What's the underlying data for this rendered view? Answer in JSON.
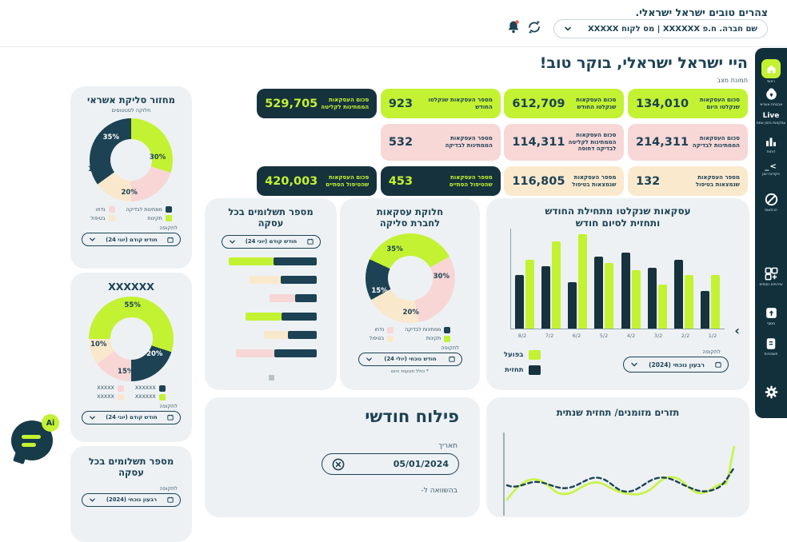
{
  "colors": {
    "lime": "#c3f232",
    "dark": "#1c4254",
    "pink": "#f8d6d6",
    "cream": "#fae8cd",
    "kpi_dark_bg": "#16323d",
    "card_bg": "#edf1f4",
    "sidebar_bg": "#11303c",
    "text_dark": "#1d4254",
    "bell_dot": "#e6604c"
  },
  "header": {
    "greeting": "צהרים טובים ישראל ישראלי.",
    "company_select": "שם חברה. ח.פ XXXXXX | מס לקוח XXXXX"
  },
  "sidebar": {
    "items": [
      {
        "label": "ראשי"
      },
      {
        "label": "אבטחת אשראי"
      },
      {
        "label": "עסקאות בזמן אמת"
      },
      {
        "label": "דוחות"
      },
      {
        "label": "פקודות יומן"
      },
      {
        "label": "הכחשות"
      },
      {
        "label": "שירותים נוספים"
      },
      {
        "label": "מסוף"
      },
      {
        "label": "חשבוניות"
      },
      {
        "label": ""
      }
    ]
  },
  "main": {
    "title": "היי ישראל ישראלי, בוקר טוב!",
    "subtitle": "תמונת מצב"
  },
  "strings": {
    "period_label": "לתקופה",
    "date_label": "תאריך",
    "compare_label": "בהשוואה ל-"
  },
  "kpis": [
    {
      "label": "סכום העסקאות שנקלטו היום",
      "value": "134,010",
      "variant": "lime"
    },
    {
      "label": "סכום העסקאות שנקלטו החודש",
      "value": "612,709",
      "variant": "lime"
    },
    {
      "label": "מספר העסקאות שנקלטו החודש",
      "value": "923",
      "variant": "lime"
    },
    {
      "label": "סכום העסקאות הממתינות לקליטה",
      "value": "529,705",
      "variant": "dark"
    },
    {
      "label": "סכום העסקאות הממתינות לבדיקה",
      "value": "214,311",
      "variant": "pink"
    },
    {
      "label": "סכום העסקאות הממתינות לקליטה לבדיקה דחופה",
      "value": "114,311",
      "variant": "pink"
    },
    {
      "label": "מספר העסקאות הממתינות לבדיקה",
      "value": "532",
      "variant": "pink"
    },
    {
      "label": "מספר העסקאות שנמצאות בטיפול",
      "value": "132",
      "variant": "cream"
    },
    {
      "label": "מספר העסקאות שנמצאות בטיפול",
      "value": "116,805",
      "variant": "cream"
    },
    {
      "label": "מספר העסקאות שהטיפול הסתיים",
      "value": "453",
      "variant": "dark"
    },
    {
      "label": "סכום העסקאות שהטיפול הסתיים",
      "value": "420,003",
      "variant": "dark"
    }
  ],
  "cards": {
    "payments_bottom": {
      "title": "מספר תשלומים בכל עסקה",
      "period": "רבעון נוכחי (2024)"
    },
    "monthly_breakdown": {
      "title": "פילוח חודשי",
      "date_value": "05/01/2024"
    }
  },
  "chart_data": [
    {
      "id": "credit_cycle_donut",
      "type": "pie",
      "title": "מחזור סליקת אשראי",
      "subtitle": "חלוקה לסטטוסים",
      "start_deg": 0,
      "segments": [
        {
          "label": "תקינות",
          "pct": "30%",
          "value": 30,
          "color": "#c3f232"
        },
        {
          "label": "נדחו",
          "pct": "20%",
          "value": 20,
          "color": "#f8d6d6"
        },
        {
          "label": "בטיפול",
          "pct": "15%",
          "value": 15,
          "color": "#fae8cd"
        },
        {
          "label": "ממתינות לבדיקה",
          "pct": "35%",
          "value": 35,
          "color": "#1c4254"
        }
      ],
      "period": "חודש קודם (יוני 24)"
    },
    {
      "id": "unknown_donut",
      "type": "pie",
      "title": "XXXXXX",
      "start_deg": 270,
      "segments": [
        {
          "label": "XXXXXX",
          "pct": "55%",
          "value": 55,
          "color": "#c3f232"
        },
        {
          "label": "XXXXXX",
          "pct": "20%",
          "value": 20,
          "color": "#1c4254"
        },
        {
          "label": "XXXXX",
          "pct": "15%",
          "value": 15,
          "color": "#f8d6d6"
        },
        {
          "label": "XXXXX",
          "pct": "10%",
          "value": 10,
          "color": "#fae8cd"
        }
      ],
      "period": "חודש קודם (יוני 24)"
    },
    {
      "id": "payments_bars",
      "type": "bar",
      "orientation": "horizontal-stacked",
      "title": "מספר תשלומים בכל עסקה",
      "rows": [
        {
          "color": "lime",
          "main": 56,
          "dark": 54
        },
        {
          "color": "cream",
          "main": 40,
          "dark": 45
        },
        {
          "color": "pink",
          "main": 32,
          "dark": 27
        },
        {
          "color": "lime",
          "main": 45,
          "dark": 44
        },
        {
          "color": "cream",
          "main": 30,
          "dark": 36
        },
        {
          "color": "pink",
          "main": 48,
          "dark": 53
        }
      ],
      "period": "חודש קודם (יוני 24)"
    },
    {
      "id": "clearing_donut",
      "type": "pie",
      "title": "חלוקת עסקאות לחברת סליקה",
      "start_deg": 295,
      "segments": [
        {
          "label": "תקינות",
          "pct": "35%",
          "value": 35,
          "color": "#c3f232"
        },
        {
          "label": "נדחו",
          "pct": "30%",
          "value": 30,
          "color": "#f8d6d6"
        },
        {
          "label": "בטיפול",
          "pct": "20%",
          "value": 20,
          "color": "#fae8cd"
        },
        {
          "label": "ממתינות לבדיקה",
          "pct": "15%",
          "value": 15,
          "color": "#1c4254"
        }
      ],
      "period": "חודש נוכחי (יולי 24)",
      "footnote": "* כולל תנועות היום"
    },
    {
      "id": "monthly_bars",
      "type": "bar",
      "title": "עסקאות שנקלטו מתחילת החודש",
      "title_line2": "ותחזית לסיום חודש",
      "categories": [
        "1/2",
        "2/2",
        "3/2",
        "4/2",
        "5/2",
        "6/2",
        "7/2",
        "8/2"
      ],
      "series": [
        {
          "name": "בפועל",
          "color": "#c3f232",
          "values": [
            56,
            56,
            46,
            61,
            68,
            98,
            91,
            72
          ]
        },
        {
          "name": "תחזית",
          "color": "#16323d",
          "values": [
            39,
            72,
            63,
            79,
            75,
            48,
            65,
            56
          ]
        }
      ],
      "ylim": [
        0,
        100
      ],
      "legend_position": "bottom-left",
      "period": "רבעון נוכחי (2024)"
    },
    {
      "id": "cashflow",
      "type": "line",
      "title": "תזרים מזומנים/ תחזית שנתית",
      "series": [
        {
          "name": "בפועל",
          "style": "solid",
          "color": "#c3f232",
          "values": [
            30,
            52,
            48,
            45,
            55,
            47,
            40,
            52,
            50,
            38,
            42,
            56,
            88
          ]
        },
        {
          "name": "תחזית",
          "style": "dashed",
          "color": "#1c4254",
          "values": [
            44,
            40,
            46,
            44,
            38,
            42,
            52,
            48,
            40,
            44,
            52,
            46,
            60
          ]
        }
      ]
    }
  ]
}
